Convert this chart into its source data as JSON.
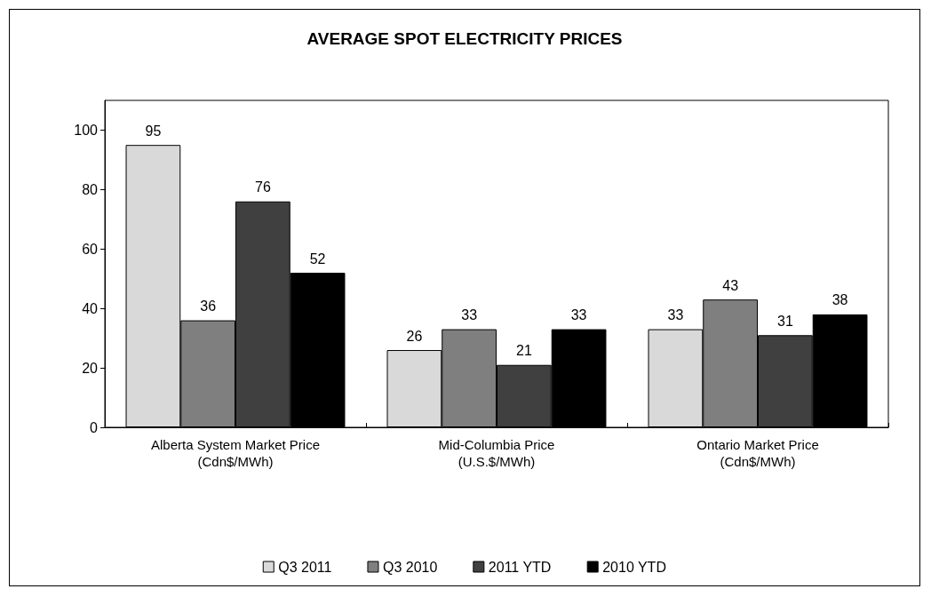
{
  "chart_data": {
    "type": "bar",
    "title": "AVERAGE SPOT ELECTRICITY PRICES",
    "categories": [
      "Alberta System Market Price\n(Cdn$/MWh)",
      "Mid-Columbia Price\n(U.S.$/MWh)",
      "Ontario Market Price\n(Cdn$/MWh)"
    ],
    "series": [
      {
        "name": "Q3 2011",
        "color": "#d9d9d9",
        "values": [
          95,
          26,
          33
        ]
      },
      {
        "name": "Q3 2010",
        "color": "#7f7f7f",
        "values": [
          36,
          33,
          43
        ]
      },
      {
        "name": "2011 YTD",
        "color": "#404040",
        "values": [
          76,
          21,
          31
        ]
      },
      {
        "name": "2010 YTD",
        "color": "#000000",
        "values": [
          52,
          33,
          38
        ]
      }
    ],
    "ylim": [
      0,
      110
    ],
    "yticks": [
      0,
      20,
      40,
      60,
      80,
      100
    ],
    "grid": false,
    "legend": "bottom",
    "data_labels": true
  }
}
